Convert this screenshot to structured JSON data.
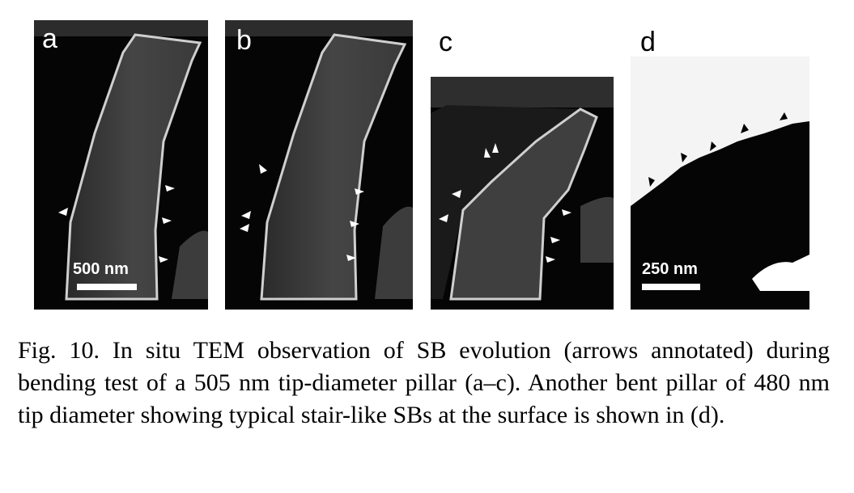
{
  "figure": {
    "panels": [
      {
        "label": "a",
        "scale_bar": "500 nm"
      },
      {
        "label": "b",
        "scale_bar": ""
      },
      {
        "label": "c",
        "scale_bar": ""
      },
      {
        "label": "d",
        "scale_bar": "250 nm"
      }
    ],
    "colors": {
      "background_dark": "#050505",
      "pillar": "#3a3a3a",
      "pillar_edge": "#d8d8d8",
      "arrow": "#ffffff",
      "arrow_dark": "#000000"
    }
  },
  "caption": {
    "text": "Fig. 10. In situ TEM observation of SB evolution (arrows annotated) during bending test of a 505 nm tip-diameter pillar (a–c). Another bent pillar of 480 nm tip diameter showing typical stair-like SBs at the surface is shown in (d)."
  }
}
